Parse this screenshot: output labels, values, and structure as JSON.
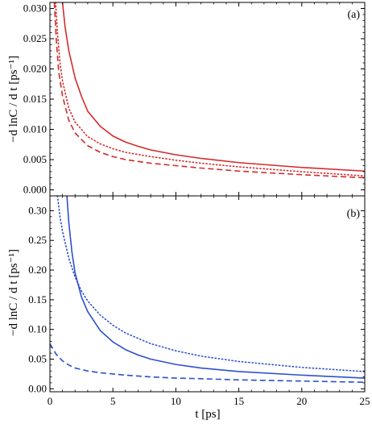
{
  "x_axis": {
    "label": "t [ps]",
    "range": [
      0,
      25
    ],
    "ticks": [
      0,
      5,
      10,
      15,
      20,
      25
    ]
  },
  "y_axis_label": "−d lnC / d t [ps⁻¹]",
  "colors": {
    "panel_a": "#d42a2a",
    "panel_b": "#2d4fcc"
  },
  "chart_data": [
    {
      "type": "line",
      "panel_label": "(a)",
      "xlabel": "",
      "ylabel": "−d lnC / d t [ps⁻¹]",
      "xlim": [
        0,
        25
      ],
      "ylim": [
        -0.001,
        0.031
      ],
      "y_ticks": [
        "0.000",
        "0.005",
        "0.010",
        "0.015",
        "0.020",
        "0.025",
        "0.030"
      ],
      "series": [
        {
          "style": "solid",
          "color": "#d42a2a",
          "x": [
            1.0,
            1.2,
            1.5,
            2.0,
            2.5,
            3.0,
            4.0,
            5.0,
            6.0,
            7.0,
            8.0,
            10.0,
            12.0,
            15.0,
            20.0,
            25.0
          ],
          "y": [
            0.031,
            0.027,
            0.023,
            0.0185,
            0.0155,
            0.013,
            0.0105,
            0.0089,
            0.0079,
            0.0072,
            0.0066,
            0.0058,
            0.0052,
            0.0045,
            0.0037,
            0.0031
          ]
        },
        {
          "style": "dotted",
          "color": "#d42a2a",
          "x": [
            0.45,
            0.6,
            0.8,
            1.0,
            1.5,
            2.0,
            3.0,
            4.0,
            5.0,
            6.0,
            8.0,
            10.0,
            12.0,
            15.0,
            20.0,
            25.0
          ],
          "y": [
            0.031,
            0.026,
            0.021,
            0.018,
            0.0135,
            0.0112,
            0.0088,
            0.0076,
            0.0068,
            0.0062,
            0.0055,
            0.0049,
            0.0044,
            0.0038,
            0.003,
            0.0023
          ]
        },
        {
          "style": "dashed",
          "color": "#d42a2a",
          "x": [
            0.35,
            0.5,
            0.7,
            1.0,
            1.5,
            2.0,
            3.0,
            4.0,
            5.0,
            6.0,
            8.0,
            10.0,
            12.0,
            15.0,
            20.0,
            25.0
          ],
          "y": [
            0.031,
            0.025,
            0.0195,
            0.0155,
            0.0115,
            0.0094,
            0.0073,
            0.0062,
            0.0055,
            0.005,
            0.0044,
            0.004,
            0.0036,
            0.0031,
            0.0025,
            0.002
          ]
        }
      ]
    },
    {
      "type": "line",
      "panel_label": "(b)",
      "xlabel": "t [ps]",
      "ylabel": "−d lnC / d t [ps⁻¹]",
      "xlim": [
        0,
        25
      ],
      "ylim": [
        -0.005,
        0.325
      ],
      "y_ticks": [
        "0.00",
        "0.05",
        "0.10",
        "0.15",
        "0.20",
        "0.25",
        "0.30"
      ],
      "series": [
        {
          "style": "solid",
          "color": "#2d4fcc",
          "x": [
            1.35,
            1.5,
            1.75,
            2.0,
            2.5,
            3.0,
            4.0,
            5.0,
            6.0,
            7.0,
            8.0,
            10.0,
            12.0,
            15.0,
            20.0,
            25.0
          ],
          "y": [
            0.325,
            0.28,
            0.23,
            0.195,
            0.155,
            0.13,
            0.098,
            0.079,
            0.066,
            0.057,
            0.05,
            0.041,
            0.035,
            0.029,
            0.023,
            0.018
          ]
        },
        {
          "style": "dotted",
          "color": "#2d4fcc",
          "x": [
            0.6,
            0.8,
            1.0,
            1.5,
            2.0,
            2.5,
            3.0,
            4.0,
            5.0,
            6.0,
            8.0,
            10.0,
            12.0,
            15.0,
            20.0,
            25.0
          ],
          "y": [
            0.325,
            0.29,
            0.265,
            0.22,
            0.188,
            0.165,
            0.148,
            0.124,
            0.107,
            0.094,
            0.076,
            0.064,
            0.055,
            0.046,
            0.036,
            0.029
          ]
        },
        {
          "style": "dashed",
          "color": "#2d4fcc",
          "x": [
            0.0,
            0.25,
            0.5,
            1.0,
            1.5,
            2.0,
            3.0,
            4.0,
            5.0,
            6.0,
            8.0,
            10.0,
            12.0,
            15.0,
            20.0,
            25.0
          ],
          "y": [
            0.076,
            0.067,
            0.058,
            0.047,
            0.04,
            0.035,
            0.03,
            0.027,
            0.025,
            0.023,
            0.02,
            0.018,
            0.017,
            0.015,
            0.013,
            0.011
          ]
        }
      ]
    }
  ]
}
